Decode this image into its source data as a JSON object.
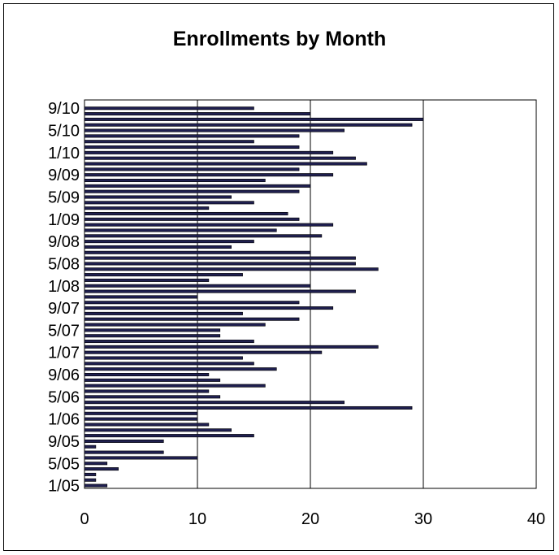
{
  "chart_data": {
    "type": "bar",
    "orientation": "horizontal",
    "title": "Enrollments by Month",
    "xlabel": "",
    "ylabel": "",
    "xlim": [
      0,
      40
    ],
    "x_ticks": [
      "0",
      "10",
      "20",
      "30",
      "40"
    ],
    "grid": "vertical",
    "legend": "none",
    "bar_color": "#1f1f4f",
    "categories": [
      "1/05",
      "2/05",
      "3/05",
      "4/05",
      "5/05",
      "6/05",
      "7/05",
      "8/05",
      "9/05",
      "10/05",
      "11/05",
      "12/05",
      "1/06",
      "2/06",
      "3/06",
      "4/06",
      "5/06",
      "6/06",
      "7/06",
      "8/06",
      "9/06",
      "10/06",
      "11/06",
      "12/06",
      "1/07",
      "2/07",
      "3/07",
      "4/07",
      "5/07",
      "6/07",
      "7/07",
      "8/07",
      "9/07",
      "10/07",
      "11/07",
      "12/07",
      "1/08",
      "2/08",
      "3/08",
      "4/08",
      "5/08",
      "6/08",
      "7/08",
      "8/08",
      "9/08",
      "10/08",
      "11/08",
      "12/08",
      "1/09",
      "2/09",
      "3/09",
      "4/09",
      "5/09",
      "6/09",
      "7/09",
      "8/09",
      "9/09",
      "10/09",
      "11/09",
      "12/09",
      "1/10",
      "2/10",
      "3/10",
      "4/10",
      "5/10",
      "6/10",
      "7/10",
      "8/10",
      "9/10",
      "10/10"
    ],
    "y_tick_labels": [
      "1/05",
      "5/05",
      "9/05",
      "1/06",
      "5/06",
      "9/06",
      "1/07",
      "5/07",
      "9/07",
      "1/08",
      "5/08",
      "9/08",
      "1/09",
      "5/09",
      "9/09",
      "1/10",
      "5/10",
      "9/10"
    ],
    "values": [
      2,
      1,
      1,
      3,
      2,
      10,
      7,
      1,
      7,
      15,
      13,
      11,
      10,
      10,
      29,
      23,
      12,
      11,
      16,
      12,
      11,
      17,
      15,
      14,
      21,
      26,
      15,
      12,
      12,
      16,
      19,
      14,
      22,
      19,
      10,
      24,
      20,
      11,
      14,
      26,
      24,
      24,
      20,
      13,
      15,
      21,
      17,
      22,
      19,
      18,
      11,
      15,
      13,
      19,
      20,
      16,
      22,
      19,
      25,
      24,
      22,
      19,
      15,
      19,
      23,
      29,
      30,
      20,
      15,
      0
    ]
  }
}
